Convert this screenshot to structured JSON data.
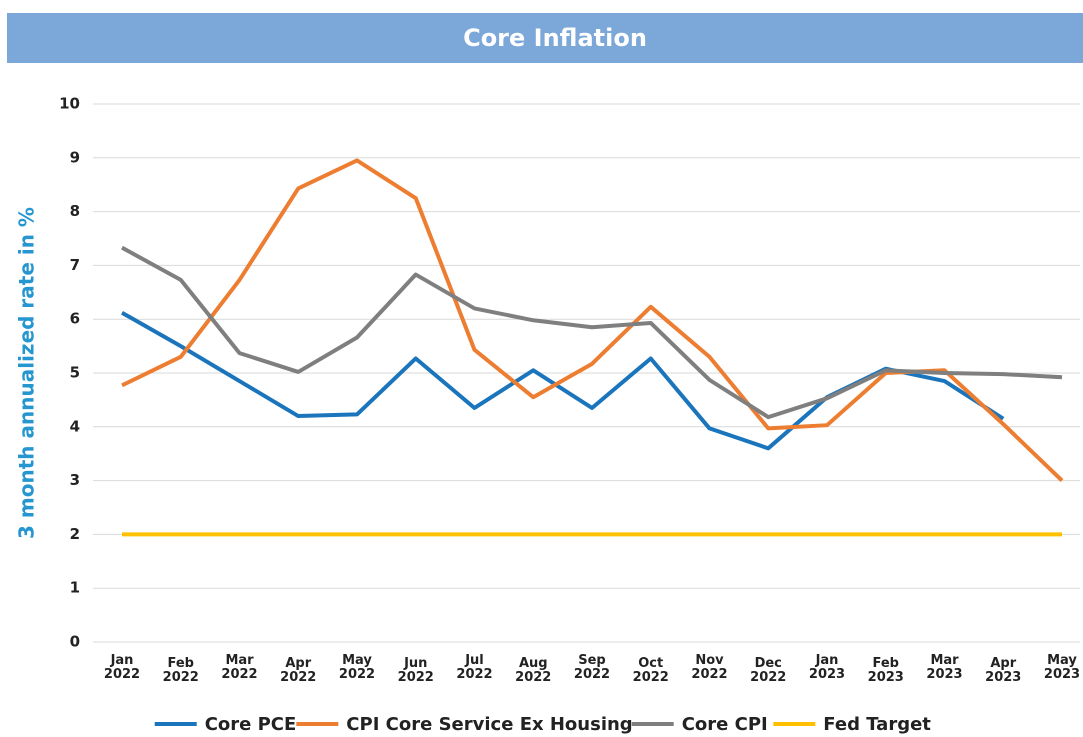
{
  "chart_data": {
    "type": "line",
    "title": "Core Inflation",
    "y_label": "3 month annualized rate in %",
    "categories": [
      "Jan 2022",
      "Feb 2022",
      "Mar 2022",
      "Apr 2022",
      "May 2022",
      "Jun 2022",
      "Jul 2022",
      "Aug 2022",
      "Sep 2022",
      "Oct 2022",
      "Nov 2022",
      "Dec 2022",
      "Jan 2023",
      "Feb 2023",
      "Mar 2023",
      "Apr 2023",
      "May 2023"
    ],
    "series": [
      {
        "name": "Core PCE",
        "color": "#1a75bc",
        "values": [
          6.12,
          5.5,
          4.85,
          4.2,
          4.23,
          5.27,
          4.35,
          5.05,
          4.35,
          5.27,
          3.97,
          3.6,
          4.55,
          5.08,
          4.85,
          4.15,
          null
        ]
      },
      {
        "name": "CPI Core Service Ex Housing",
        "color": "#ed7d31",
        "values": [
          4.77,
          5.3,
          6.73,
          8.43,
          8.95,
          8.25,
          5.43,
          4.55,
          5.17,
          6.23,
          5.3,
          3.97,
          4.03,
          5.0,
          5.05,
          4.05,
          3.0
        ]
      },
      {
        "name": "Core CPI",
        "color": "#7f7f7f",
        "values": [
          7.33,
          6.73,
          5.37,
          5.02,
          5.66,
          6.83,
          6.2,
          5.98,
          5.85,
          5.93,
          4.87,
          4.18,
          4.53,
          5.05,
          5.0,
          4.98,
          4.92
        ]
      },
      {
        "name": "Fed Target",
        "color": "#ffc000",
        "values": [
          2,
          2,
          2,
          2,
          2,
          2,
          2,
          2,
          2,
          2,
          2,
          2,
          2,
          2,
          2,
          2,
          2
        ]
      }
    ],
    "ylim": [
      0,
      10
    ],
    "yticks": [
      0,
      1,
      2,
      3,
      4,
      5,
      6,
      7,
      8,
      9,
      10
    ],
    "grid": true
  }
}
